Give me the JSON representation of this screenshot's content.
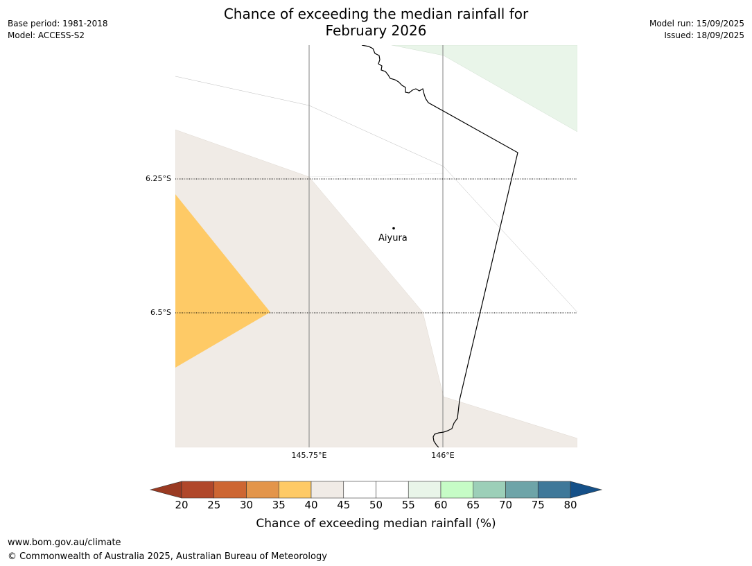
{
  "title_line1": "Chance of exceeding the median rainfall for",
  "title_line2": "February 2026",
  "meta_left": {
    "base_period": "Base period: 1981-2018",
    "model": "Model: ACCESS-S2"
  },
  "meta_right": {
    "model_run": "Model run: 15/09/2025",
    "issued": "Issued: 18/09/2025"
  },
  "map": {
    "lat_labels": [
      "6.25°S",
      "6.5°S"
    ],
    "lon_labels": [
      "145.75°E",
      "146°E"
    ],
    "place": "Aiyura",
    "region_colors": {
      "light_green": "#e9f5e9",
      "beige": "#f0ebe6",
      "yellow": "#feca66"
    }
  },
  "colorbar": {
    "ticks": [
      "20",
      "25",
      "30",
      "35",
      "40",
      "45",
      "50",
      "55",
      "60",
      "65",
      "70",
      "75",
      "80"
    ],
    "colors": [
      "#b0472a",
      "#cd6632",
      "#e3954a",
      "#feca66",
      "#f0ebe6",
      "#ffffff",
      "#ffffff",
      "#e9f5e9",
      "#c6fcc6",
      "#9ccfb8",
      "#6ea4a8",
      "#3f7899"
    ],
    "under_color": "#9a3a22",
    "over_color": "#155088",
    "label": "Chance of exceeding median rainfall (%)"
  },
  "footer": {
    "url": "www.bom.gov.au/climate",
    "copyright": "© Commonwealth of Australia 2025, Australian Bureau of Meteorology"
  }
}
